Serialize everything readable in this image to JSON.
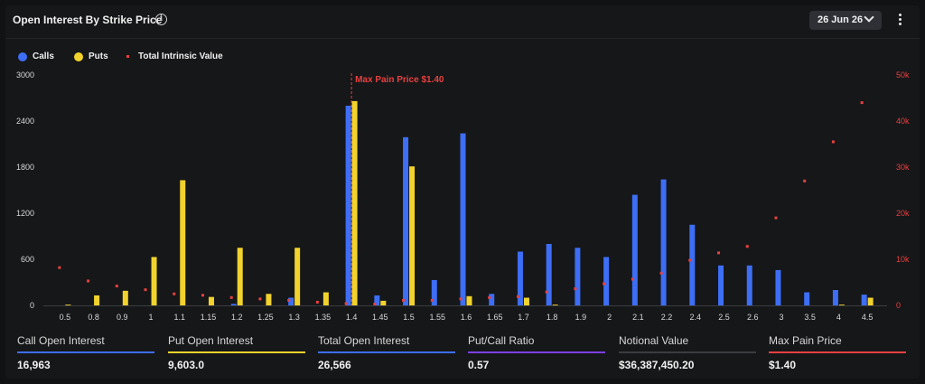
{
  "header": {
    "title": "Open Interest By Strike Price",
    "info_icon": "info-icon",
    "date_label": "26 Jun 26",
    "more_icon": "more-vertical-icon"
  },
  "legend": [
    {
      "label": "Calls",
      "color": "#3d6ef5",
      "shape": "dot"
    },
    {
      "label": "Puts",
      "color": "#f2d32d",
      "shape": "dot"
    },
    {
      "label": "Total Intrinsic Value",
      "color": "#e84040",
      "shape": "square"
    }
  ],
  "chart_data": {
    "type": "bar",
    "title": "",
    "xlabel": "",
    "ylabel": "",
    "categories": [
      "0.5",
      "0.8",
      "0.9",
      "1",
      "1.1",
      "1.15",
      "1.2",
      "1.25",
      "1.3",
      "1.35",
      "1.4",
      "1.45",
      "1.5",
      "1.55",
      "1.6",
      "1.65",
      "1.7",
      "1.8",
      "1.9",
      "2",
      "2.1",
      "2.2",
      "2.4",
      "2.5",
      "2.6",
      "3",
      "3.5",
      "4",
      "4.5"
    ],
    "y_ticks": [
      "0",
      "600",
      "1200",
      "1800",
      "2400",
      "3000"
    ],
    "y2_ticks": [
      "0",
      "10k",
      "20k",
      "30k",
      "40k",
      "50k"
    ],
    "ylim": [
      0,
      3000
    ],
    "y2lim": [
      0,
      50000
    ],
    "legend_position": "top-left",
    "grid": false,
    "series": [
      {
        "name": "Calls",
        "type": "bar",
        "color": "#3d6ef5",
        "values": [
          0,
          0,
          0,
          0,
          0,
          0,
          20,
          0,
          100,
          0,
          2600,
          130,
          2190,
          330,
          2240,
          150,
          700,
          800,
          750,
          630,
          1440,
          1640,
          1050,
          520,
          520,
          460,
          170,
          200,
          140
        ]
      },
      {
        "name": "Puts",
        "type": "bar",
        "color": "#f2d32d",
        "values": [
          10,
          130,
          190,
          630,
          1630,
          110,
          750,
          150,
          750,
          170,
          2660,
          60,
          1810,
          0,
          120,
          0,
          100,
          10,
          0,
          0,
          0,
          0,
          0,
          0,
          0,
          0,
          0,
          10,
          100
        ]
      },
      {
        "name": "Total Intrinsic Value",
        "type": "scatter",
        "axis": "right",
        "color": "#e84040",
        "values": [
          8200,
          5300,
          4200,
          3400,
          2500,
          2200,
          1700,
          1400,
          1100,
          700,
          400,
          300,
          1100,
          1100,
          1400,
          1700,
          1900,
          2900,
          3600,
          4700,
          5700,
          7000,
          9800,
          11400,
          12800,
          19000,
          27000,
          35500,
          44000
        ]
      }
    ],
    "annotation": {
      "category": "1.4",
      "label": "Max Pain Price $1.40",
      "color": "#e84040"
    }
  },
  "stats": [
    {
      "label": "Call Open Interest",
      "value": "16,963",
      "color": "#3d6ef5"
    },
    {
      "label": "Put Open Interest",
      "value": "9,603.0",
      "color": "#f2d32d"
    },
    {
      "label": "Total Open Interest",
      "value": "26,566",
      "color": "#3d6ef5"
    },
    {
      "label": "Put/Call Ratio",
      "value": "0.57",
      "color": "#7b3fe4"
    },
    {
      "label": "Notional Value",
      "value": "$36,387,450.20",
      "color": "#3a3c40"
    },
    {
      "label": "Max Pain Price",
      "value": "$1.40",
      "color": "#e84040"
    }
  ]
}
